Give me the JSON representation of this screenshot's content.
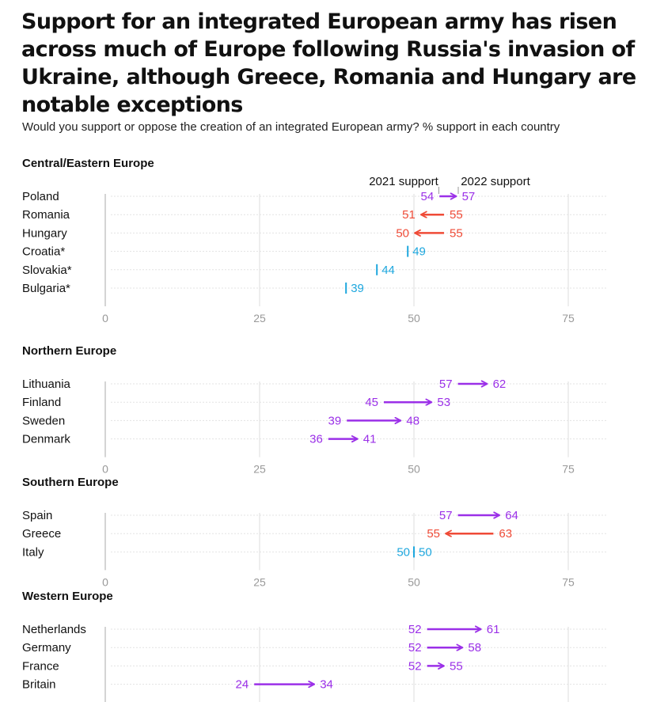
{
  "title": "Support for an integrated European army has risen across much of Europe following Russia's invasion of Ukraine, although Greece, Romania and Hungary are notable exceptions",
  "subtitle": "Would you support or oppose the creation of an integrated European army? % support in each country",
  "legend": {
    "label_2021": "2021 support",
    "label_2022": "2022 support"
  },
  "colors": {
    "increase": "#9b30e8",
    "decrease": "#ef4b37",
    "unchanged": "#1ea7de",
    "axis": "#999999",
    "grid": "#dddddd"
  },
  "chart_data": [
    {
      "type": "dumbbell",
      "title": "Central/Eastern Europe",
      "xlim": [
        0,
        80
      ],
      "ticks": [
        0,
        25,
        50,
        75
      ],
      "rows": [
        {
          "country": "Poland",
          "v2021": 54,
          "v2022": 57
        },
        {
          "country": "Romania",
          "v2021": 55,
          "v2022": 51
        },
        {
          "country": "Hungary",
          "v2021": 55,
          "v2022": 50
        },
        {
          "country": "Croatia*",
          "v2021": null,
          "v2022": 49
        },
        {
          "country": "Slovakia*",
          "v2021": null,
          "v2022": 44
        },
        {
          "country": "Bulgaria*",
          "v2021": null,
          "v2022": 39
        }
      ]
    },
    {
      "type": "dumbbell",
      "title": "Northern Europe",
      "xlim": [
        0,
        80
      ],
      "ticks": [
        0,
        25,
        50,
        75
      ],
      "rows": [
        {
          "country": "Lithuania",
          "v2021": 57,
          "v2022": 62
        },
        {
          "country": "Finland",
          "v2021": 45,
          "v2022": 53
        },
        {
          "country": "Sweden",
          "v2021": 39,
          "v2022": 48
        },
        {
          "country": "Denmark",
          "v2021": 36,
          "v2022": 41
        }
      ]
    },
    {
      "type": "dumbbell",
      "title": "Southern Europe",
      "xlim": [
        0,
        80
      ],
      "ticks": [
        0,
        25,
        50,
        75
      ],
      "rows": [
        {
          "country": "Spain",
          "v2021": 57,
          "v2022": 64
        },
        {
          "country": "Greece",
          "v2021": 63,
          "v2022": 55
        },
        {
          "country": "Italy",
          "v2021": 50,
          "v2022": 50
        }
      ]
    },
    {
      "type": "dumbbell",
      "title": "Western Europe",
      "xlim": [
        0,
        80
      ],
      "ticks": [
        0,
        25,
        50,
        75
      ],
      "rows": [
        {
          "country": "Netherlands",
          "v2021": 52,
          "v2022": 61
        },
        {
          "country": "Germany",
          "v2021": 52,
          "v2022": 58
        },
        {
          "country": "France",
          "v2021": 52,
          "v2022": 55
        },
        {
          "country": "Britain",
          "v2021": 24,
          "v2022": 34
        }
      ]
    }
  ]
}
